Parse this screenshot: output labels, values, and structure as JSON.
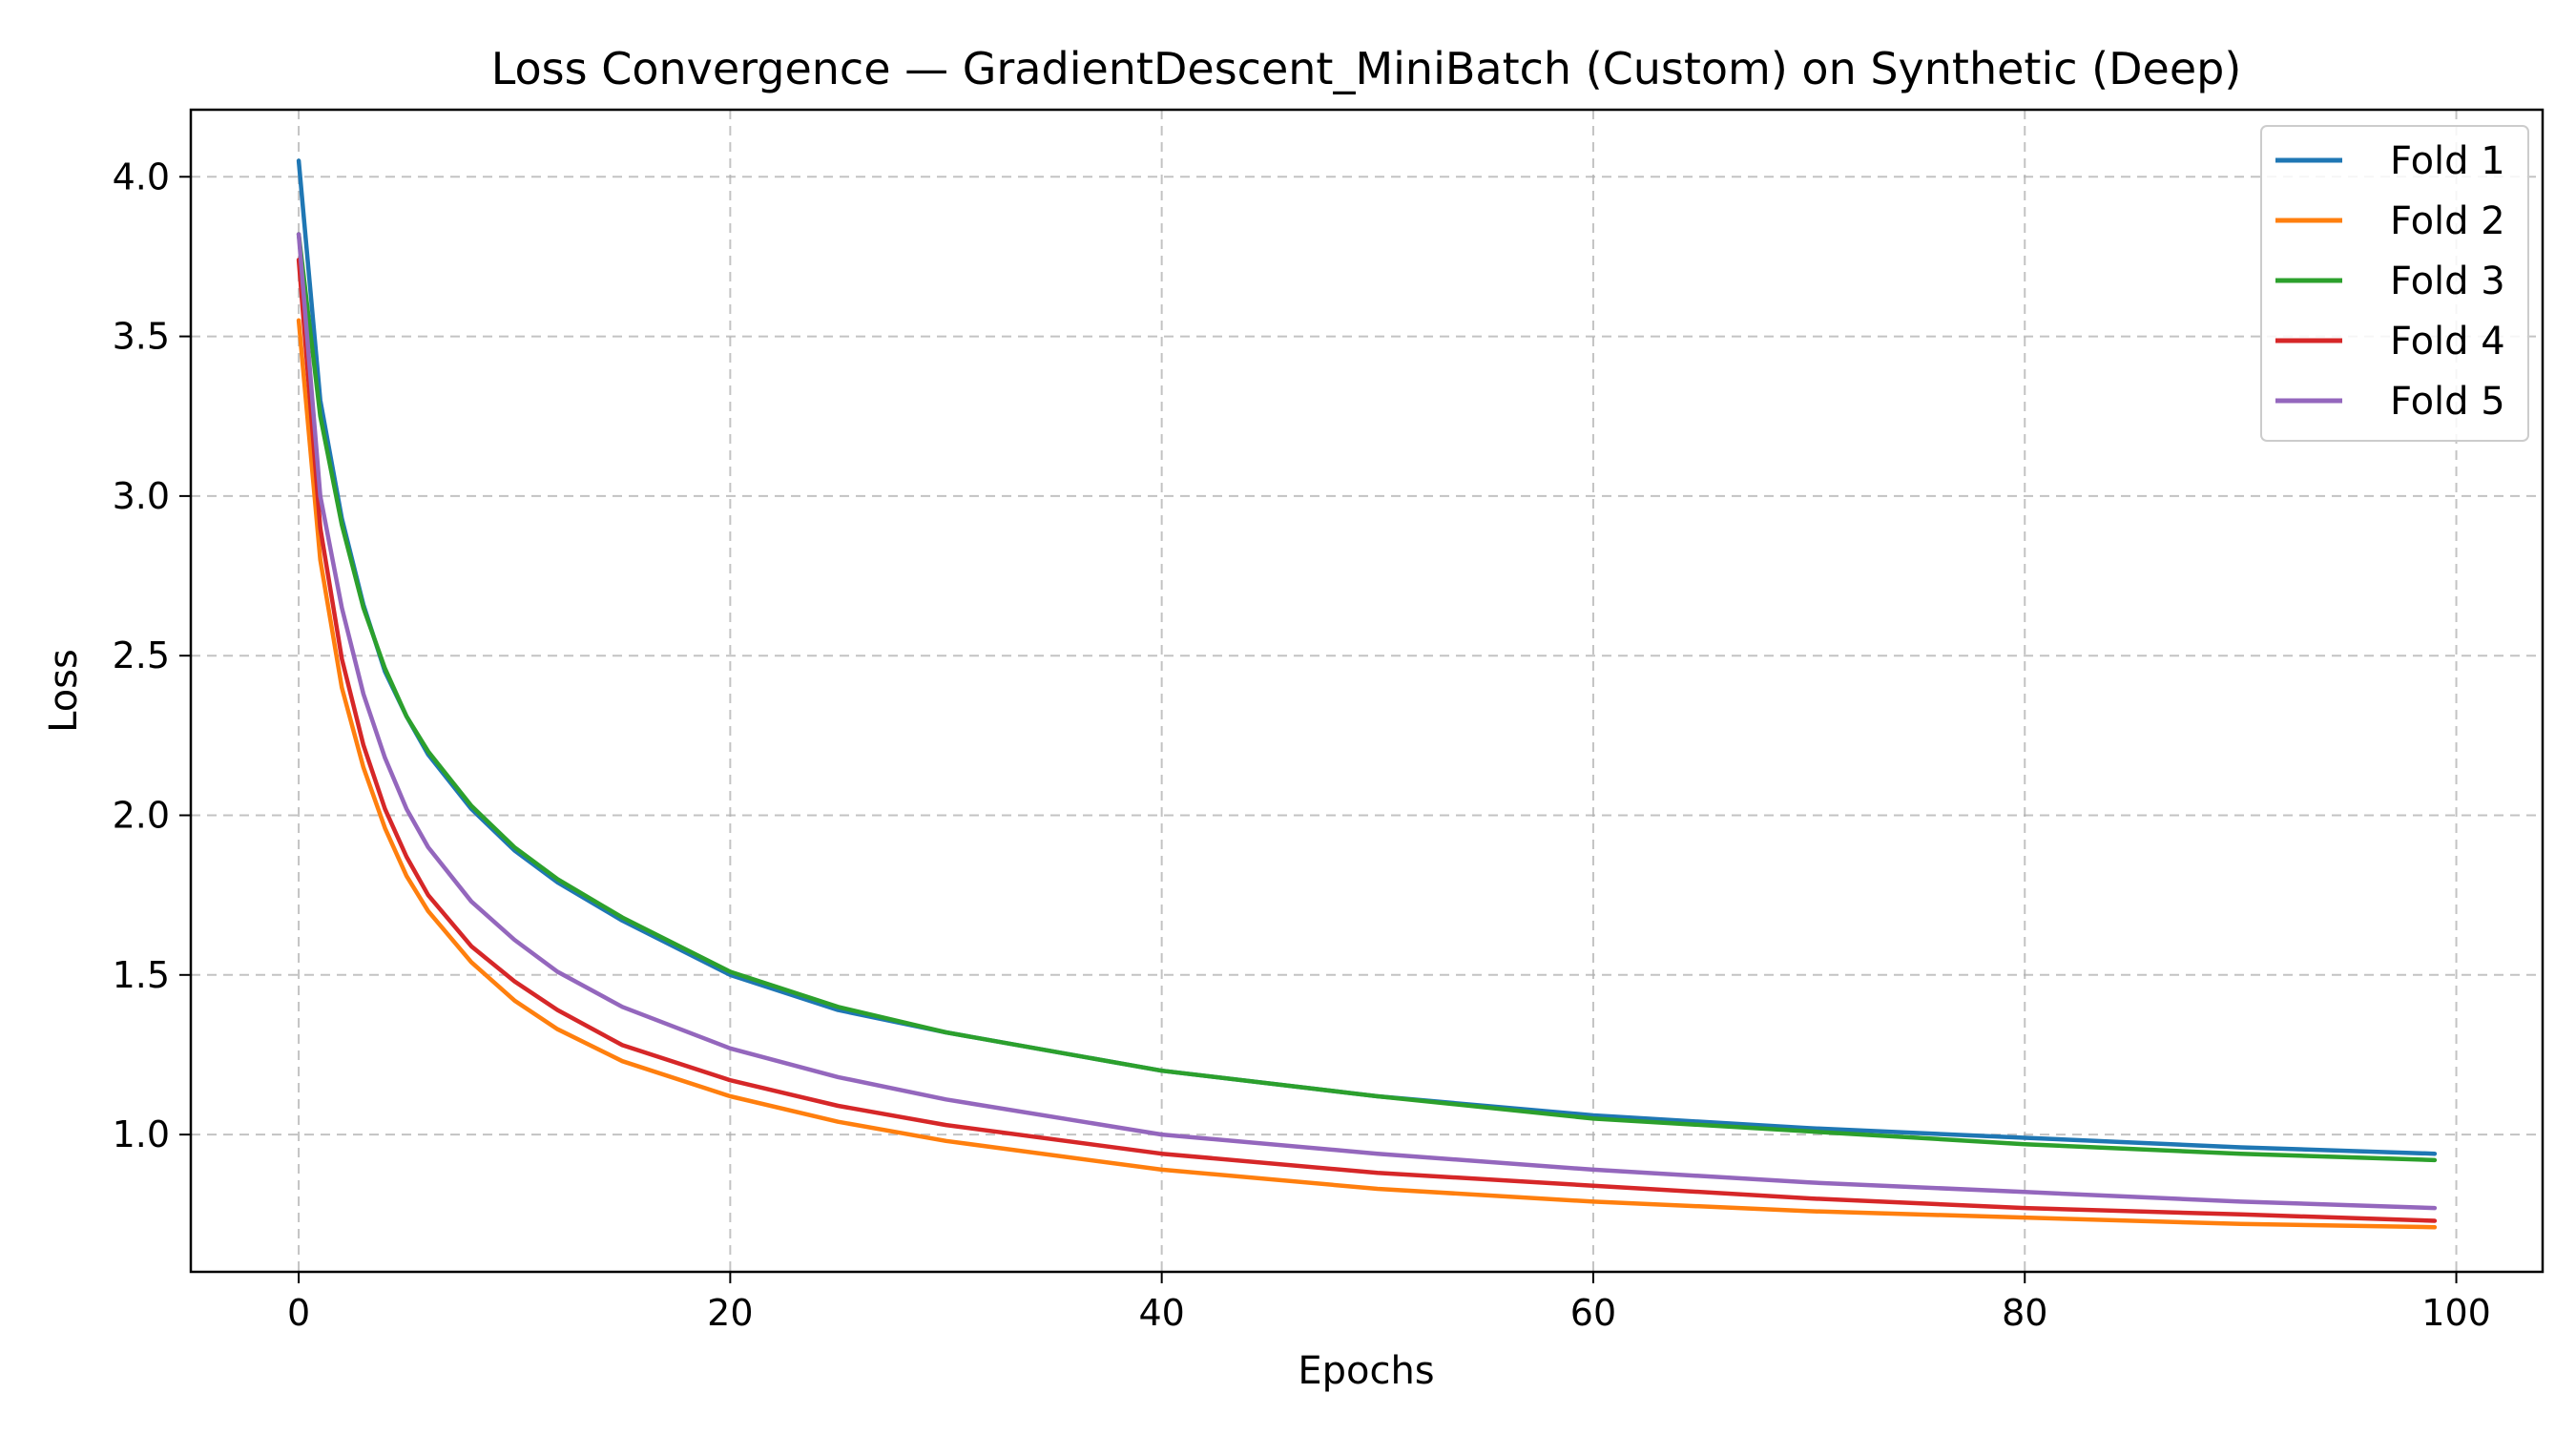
{
  "chart_data": {
    "type": "line",
    "title": "Loss Convergence — GradientDescent_MiniBatch (Custom) on Synthetic (Deep)",
    "xlabel": "Epochs",
    "ylabel": "Loss",
    "xlim": [
      -5,
      104
    ],
    "ylim": [
      0.57,
      4.21
    ],
    "xticks": [
      0,
      20,
      40,
      60,
      80,
      100
    ],
    "yticks": [
      1.0,
      1.5,
      2.0,
      2.5,
      3.0,
      3.5,
      4.0
    ],
    "grid": true,
    "legend_position": "top-right",
    "x": [
      0,
      1,
      2,
      3,
      4,
      5,
      6,
      8,
      10,
      12,
      15,
      20,
      25,
      30,
      40,
      50,
      60,
      70,
      80,
      90,
      99
    ],
    "series": [
      {
        "name": "Fold 1",
        "color": "#1f77b4",
        "values": [
          4.05,
          3.3,
          2.93,
          2.66,
          2.45,
          2.31,
          2.19,
          2.02,
          1.89,
          1.79,
          1.67,
          1.5,
          1.39,
          1.32,
          1.2,
          1.12,
          1.06,
          1.02,
          0.99,
          0.96,
          0.94
        ]
      },
      {
        "name": "Fold 2",
        "color": "#ff7f0e",
        "values": [
          3.55,
          2.8,
          2.4,
          2.15,
          1.96,
          1.81,
          1.7,
          1.54,
          1.42,
          1.33,
          1.23,
          1.12,
          1.04,
          0.98,
          0.89,
          0.83,
          0.79,
          0.76,
          0.74,
          0.72,
          0.71
        ]
      },
      {
        "name": "Fold 3",
        "color": "#2ca02c",
        "values": [
          3.82,
          3.25,
          2.91,
          2.65,
          2.46,
          2.31,
          2.2,
          2.03,
          1.9,
          1.8,
          1.68,
          1.51,
          1.4,
          1.32,
          1.2,
          1.12,
          1.05,
          1.01,
          0.97,
          0.94,
          0.92
        ]
      },
      {
        "name": "Fold 4",
        "color": "#d62728",
        "values": [
          3.74,
          2.9,
          2.49,
          2.22,
          2.02,
          1.87,
          1.75,
          1.59,
          1.48,
          1.39,
          1.28,
          1.17,
          1.09,
          1.03,
          0.94,
          0.88,
          0.84,
          0.8,
          0.77,
          0.75,
          0.73
        ]
      },
      {
        "name": "Fold 5",
        "color": "#9467bd",
        "values": [
          3.82,
          3.0,
          2.65,
          2.38,
          2.18,
          2.02,
          1.9,
          1.73,
          1.61,
          1.51,
          1.4,
          1.27,
          1.18,
          1.11,
          1.0,
          0.94,
          0.89,
          0.85,
          0.82,
          0.79,
          0.77
        ]
      }
    ]
  }
}
